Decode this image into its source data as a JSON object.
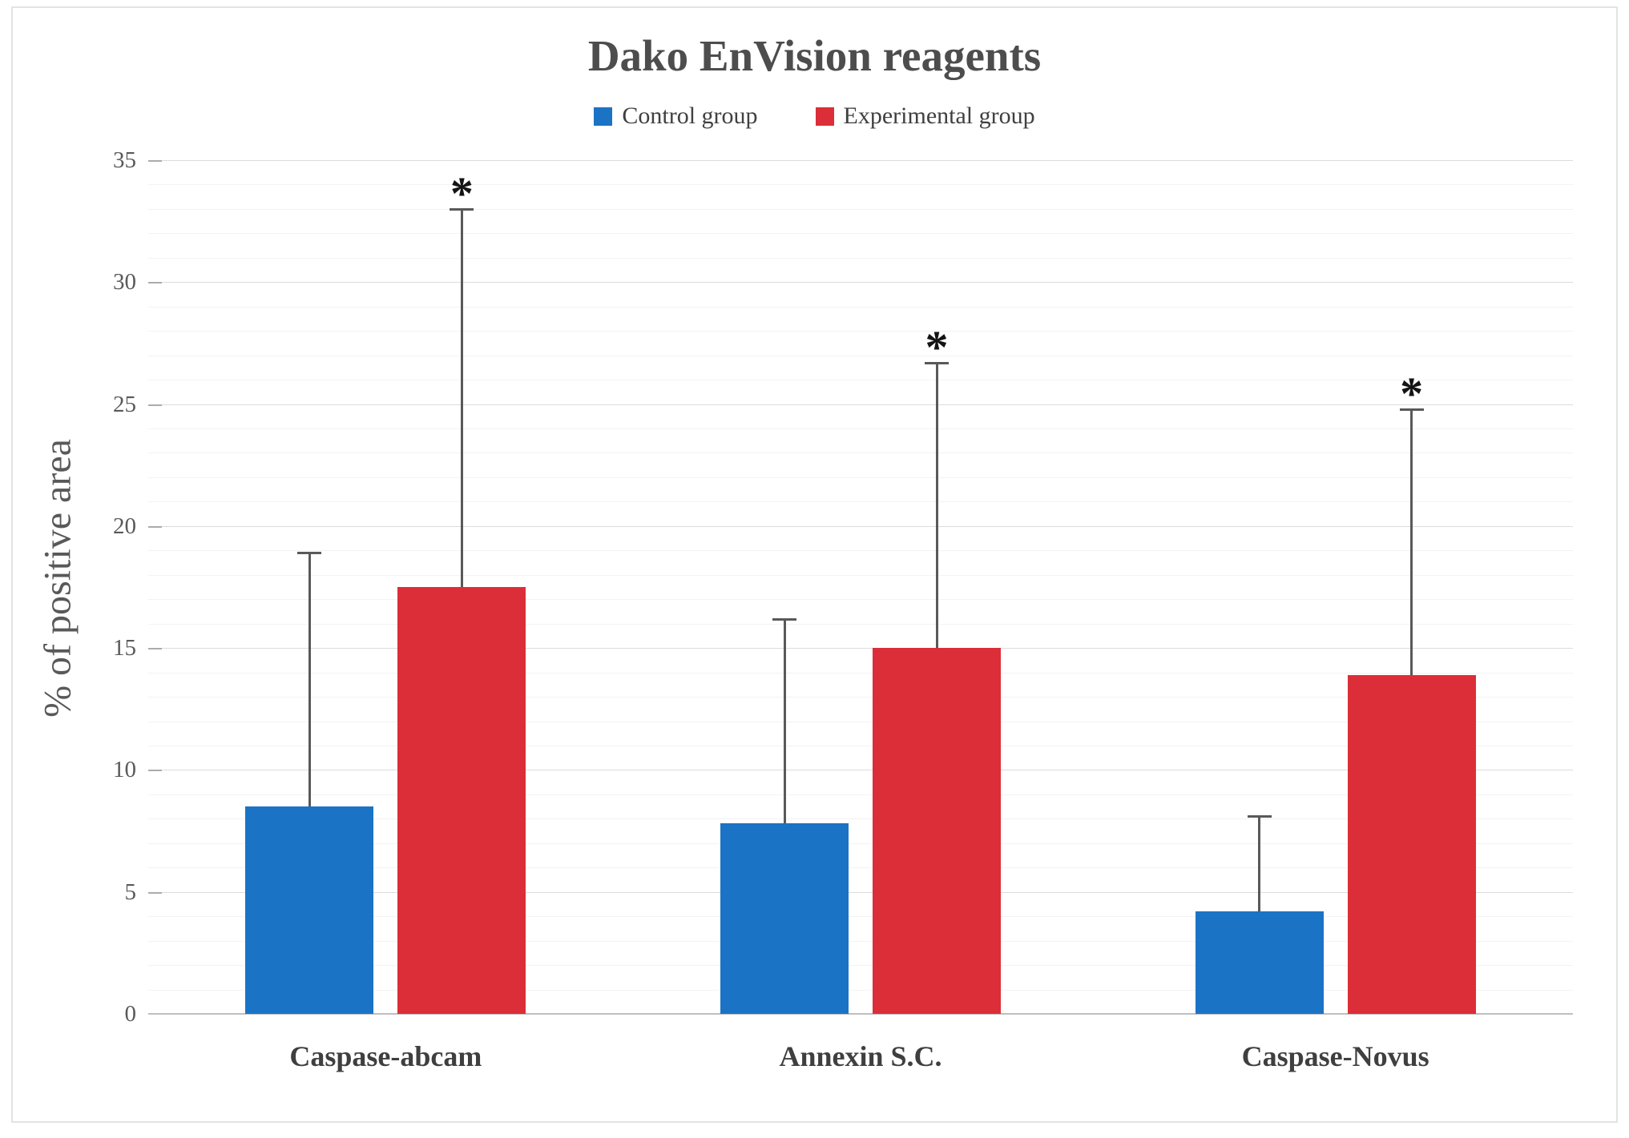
{
  "figure": {
    "title": "Dako EnVision reagents",
    "y_axis_title": "% of positive area"
  },
  "chart_data": {
    "type": "bar",
    "title": "Dako EnVision reagents",
    "xlabel": "",
    "ylabel": "% of positive area",
    "ylim": [
      0,
      35
    ],
    "y_major_ticks": [
      0,
      5,
      10,
      15,
      20,
      25,
      30,
      35
    ],
    "grid": {
      "minor_step": 1,
      "major_step": 5,
      "minor_on": true,
      "major_on": true
    },
    "legend_position": "top-center",
    "categories": [
      "Caspase-abcam",
      "Annexin S.C.",
      "Caspase-Novus"
    ],
    "series": [
      {
        "name": "Control group",
        "color": "#1b73c5",
        "values": [
          8.5,
          7.8,
          4.2
        ],
        "error_up": [
          10.4,
          8.4,
          3.9
        ],
        "error_top": [
          18.9,
          16.2,
          8.1
        ],
        "sig_labels": [
          "",
          "",
          ""
        ]
      },
      {
        "name": "Experimental group",
        "color": "#dc2e38",
        "values": [
          17.5,
          15.0,
          13.9
        ],
        "error_up": [
          15.5,
          11.7,
          10.9
        ],
        "error_top": [
          33.0,
          26.7,
          24.8
        ],
        "sig_labels": [
          "*",
          "*",
          "*"
        ]
      }
    ]
  }
}
